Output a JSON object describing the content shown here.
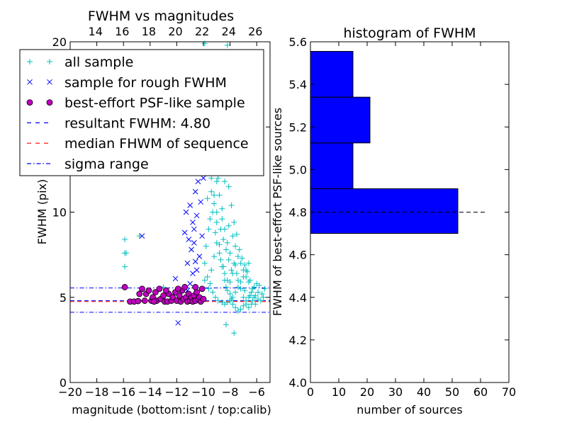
{
  "figure": {
    "left_title": "FWHM vs magnitudes",
    "left_xlabel": "magnitude (bottom:isnt / top:calib)",
    "left_ylabel": "FWHM (pix)",
    "right_title": "histogram of FWHM",
    "right_xlabel": "number of sources",
    "right_ylabel": "FWHM of best-effort PSF-like sources"
  },
  "legend": [
    {
      "label": "all sample",
      "marker": "plus",
      "color": "#00bfbf"
    },
    {
      "label": "sample for rough FWHM",
      "marker": "x",
      "color": "#0000ff"
    },
    {
      "label": "best-effort PSF-like sample",
      "marker": "circle",
      "color": "#bf00bf"
    },
    {
      "label": "resultant FWHM: 4.80",
      "marker": "dash",
      "color": "#0000ff"
    },
    {
      "label": "median FHWM of sequence",
      "marker": "dash",
      "color": "#ff0000"
    },
    {
      "label": "sigma range",
      "marker": "dashdot",
      "color": "#0000ff"
    }
  ],
  "chart_data": [
    {
      "type": "scatter",
      "title": "FWHM vs magnitudes",
      "xlabel": "magnitude (bottom:isnt / top:calib)",
      "ylabel": "FWHM (pix)",
      "xlim": [
        -20,
        -5
      ],
      "ylim": [
        0,
        20
      ],
      "xticks": [
        "−20",
        "−18",
        "−16",
        "−14",
        "−12",
        "−10",
        "−8",
        "−6"
      ],
      "xtick_values": [
        -20,
        -18,
        -16,
        -14,
        -12,
        -10,
        -8,
        -6
      ],
      "yticks": [
        "0",
        "5",
        "10",
        "15",
        "20"
      ],
      "ytick_values": [
        0,
        5,
        10,
        15,
        20
      ],
      "top_xticks": [
        "14",
        "16",
        "18",
        "20",
        "22",
        "24",
        "26"
      ],
      "top_xtick_values": [
        14,
        16,
        18,
        20,
        22,
        24,
        26
      ],
      "top_xlim": [
        12.1,
        27.1
      ],
      "lines": [
        {
          "name": "resultant FWHM: 4.80",
          "y": 4.8,
          "color": "#0000ff",
          "style": "dashed"
        },
        {
          "name": "median FHWM of sequence",
          "y": 4.75,
          "color": "#ff0000",
          "style": "dashed"
        },
        {
          "name": "sigma range",
          "y": 5.55,
          "color": "#0000ff",
          "style": "dashdot"
        },
        {
          "name": "sigma range",
          "y": 4.12,
          "color": "#0000ff",
          "style": "dashdot"
        }
      ],
      "series": [
        {
          "name": "all sample",
          "marker": "plus",
          "color": "#00bfbf",
          "points": [
            [
              -15.9,
              8.4
            ],
            [
              -15.9,
              7.6
            ],
            [
              -15.8,
              7.6
            ],
            [
              -15.9,
              6.8
            ],
            [
              -14.8,
              8.6
            ],
            [
              -13.0,
              5.6
            ],
            [
              -12.5,
              5.2
            ],
            [
              -9.6,
              12.5
            ],
            [
              -9.4,
              11.2
            ],
            [
              -9.2,
              10.5
            ],
            [
              -9.0,
              9.4
            ],
            [
              -9.1,
              8.8
            ],
            [
              -8.8,
              8.1
            ],
            [
              -8.7,
              7.2
            ],
            [
              -8.5,
              6.8
            ],
            [
              -8.4,
              6.4
            ],
            [
              -8.2,
              6.0
            ],
            [
              -8.3,
              5.6
            ],
            [
              -8.0,
              5.2
            ],
            [
              -7.9,
              4.9
            ],
            [
              -7.8,
              4.6
            ],
            [
              -7.6,
              4.4
            ],
            [
              -7.4,
              4.2
            ],
            [
              -7.2,
              4.3
            ],
            [
              -7.0,
              4.5
            ],
            [
              -6.8,
              4.8
            ],
            [
              -6.6,
              5.0
            ],
            [
              -6.4,
              5.3
            ],
            [
              -6.2,
              5.6
            ],
            [
              -6.0,
              5.8
            ],
            [
              -5.8,
              5.7
            ],
            [
              -5.6,
              5.2
            ],
            [
              -5.4,
              5.5
            ],
            [
              -7.7,
              2.9
            ],
            [
              -8.3,
              3.4
            ],
            [
              -8.9,
              13.2
            ],
            [
              -8.6,
              12.4
            ],
            [
              -8.4,
              11.8
            ],
            [
              -8.8,
              14.6
            ],
            [
              -9.3,
              15.2
            ],
            [
              -9.5,
              16.4
            ],
            [
              -9.1,
              17.3
            ],
            [
              -8.7,
              18.6
            ],
            [
              -9.9,
              19.9
            ],
            [
              -8.2,
              19.8
            ],
            [
              -9.0,
              10.0
            ],
            [
              -8.6,
              9.6
            ],
            [
              -8.1,
              9.2
            ],
            [
              -7.8,
              8.6
            ],
            [
              -7.6,
              8.0
            ],
            [
              -7.4,
              7.4
            ],
            [
              -7.2,
              7.0
            ],
            [
              -7.0,
              6.6
            ],
            [
              -6.8,
              6.2
            ],
            [
              -6.6,
              5.9
            ],
            [
              -7.9,
              6.6
            ],
            [
              -8.1,
              7.2
            ],
            [
              -8.3,
              7.8
            ],
            [
              -8.5,
              8.4
            ],
            [
              -8.7,
              9.0
            ],
            [
              -9.2,
              11.0
            ],
            [
              -9.4,
              12.0
            ],
            [
              -9.7,
              13.6
            ],
            [
              -9.8,
              14.4
            ],
            [
              -8.9,
              15.8
            ],
            [
              -9.6,
              9.0
            ],
            [
              -9.8,
              8.0
            ],
            [
              -9.9,
              7.0
            ],
            [
              -9.7,
              6.2
            ],
            [
              -9.5,
              5.8
            ],
            [
              -9.3,
              5.3
            ],
            [
              -9.1,
              5.0
            ],
            [
              -8.9,
              4.8
            ],
            [
              -8.6,
              4.7
            ],
            [
              -8.4,
              4.6
            ],
            [
              -8.2,
              4.7
            ],
            [
              -8.0,
              4.8
            ],
            [
              -7.8,
              5.0
            ],
            [
              -7.6,
              5.3
            ],
            [
              -7.4,
              5.6
            ],
            [
              -7.2,
              5.9
            ],
            [
              -7.0,
              6.2
            ],
            [
              -6.8,
              6.6
            ],
            [
              -6.6,
              7.0
            ],
            [
              -6.9,
              5.4
            ],
            [
              -6.5,
              5.1
            ],
            [
              -6.3,
              4.8
            ],
            [
              -6.1,
              4.6
            ],
            [
              -5.9,
              4.9
            ],
            [
              -7.5,
              6.4
            ],
            [
              -7.7,
              7.0
            ],
            [
              -8.0,
              7.6
            ],
            [
              -8.2,
              8.2
            ],
            [
              -8.4,
              9.0
            ],
            [
              -8.6,
              10.2
            ],
            [
              -8.8,
              11.0
            ],
            [
              -9.0,
              11.8
            ],
            [
              -9.2,
              13.0
            ],
            [
              -8.5,
              13.8
            ],
            [
              -8.3,
              12.8
            ],
            [
              -8.1,
              11.5
            ],
            [
              -7.9,
              10.4
            ],
            [
              -7.7,
              9.4
            ],
            [
              -7.5,
              8.7
            ],
            [
              -7.3,
              7.8
            ],
            [
              -7.1,
              7.3
            ],
            [
              -6.9,
              6.9
            ],
            [
              -6.7,
              6.5
            ],
            [
              -6.5,
              6.0
            ],
            [
              -6.3,
              5.5
            ],
            [
              -6.1,
              5.1
            ],
            [
              -5.9,
              5.3
            ],
            [
              -9.9,
              6.0
            ],
            [
              -9.6,
              5.5
            ],
            [
              -9.4,
              6.6
            ],
            [
              -9.2,
              7.4
            ],
            [
              -9.0,
              8.2
            ],
            [
              -8.8,
              7.6
            ],
            [
              -8.6,
              6.8
            ],
            [
              -8.4,
              6.0
            ],
            [
              -8.2,
              5.4
            ],
            [
              -8.0,
              5.9
            ],
            [
              -7.8,
              6.4
            ],
            [
              -7.6,
              6.9
            ],
            [
              -7.4,
              6.0
            ],
            [
              -7.2,
              5.5
            ],
            [
              -7.0,
              5.0
            ],
            [
              -6.8,
              4.6
            ],
            [
              -6.6,
              4.4
            ],
            [
              -6.4,
              4.6
            ],
            [
              -6.2,
              5.0
            ],
            [
              -5.7,
              4.8
            ],
            [
              -5.5,
              5.0
            ],
            [
              -8.7,
              14.2
            ],
            [
              -9.1,
              14.0
            ],
            [
              -8.9,
              12.0
            ],
            [
              -9.3,
              10.0
            ],
            [
              -9.5,
              9.6
            ],
            [
              -9.7,
              10.8
            ]
          ]
        },
        {
          "name": "sample for rough FWHM",
          "marker": "x",
          "color": "#0000ff",
          "points": [
            [
              -14.6,
              8.6
            ],
            [
              -12.1,
              6.1
            ],
            [
              -11.9,
              3.5
            ],
            [
              -11.2,
              5.4
            ],
            [
              -11.0,
              5.8
            ],
            [
              -10.8,
              6.4
            ],
            [
              -10.6,
              7.1
            ],
            [
              -10.9,
              7.8
            ],
            [
              -11.1,
              8.4
            ],
            [
              -10.7,
              9.0
            ],
            [
              -10.5,
              9.8
            ],
            [
              -11.0,
              10.4
            ],
            [
              -10.6,
              11.2
            ],
            [
              -10.4,
              11.8
            ],
            [
              -10.8,
              12.4
            ],
            [
              -10.2,
              13.2
            ],
            [
              -10.9,
              13.8
            ],
            [
              -10.6,
              14.6
            ],
            [
              -10.4,
              15.4
            ],
            [
              -10.1,
              16.2
            ],
            [
              -11.3,
              10.0
            ],
            [
              -10.7,
              8.2
            ],
            [
              -10.3,
              7.4
            ],
            [
              -10.5,
              6.6
            ],
            [
              -10.2,
              10.6
            ],
            [
              -10.0,
              12.0
            ],
            [
              -11.4,
              8.8
            ],
            [
              -10.8,
              9.4
            ],
            [
              -11.2,
              7.0
            ],
            [
              -10.1,
              8.6
            ]
          ]
        },
        {
          "name": "best-effort PSF-like sample",
          "marker": "circle",
          "color": "#bf00bf",
          "points": [
            [
              -15.9,
              5.6
            ],
            [
              -15.5,
              4.75
            ],
            [
              -15.2,
              4.75
            ],
            [
              -14.9,
              4.78
            ],
            [
              -14.6,
              5.5
            ],
            [
              -14.4,
              4.8
            ],
            [
              -14.3,
              5.2
            ],
            [
              -14.1,
              5.4
            ],
            [
              -13.9,
              4.8
            ],
            [
              -13.8,
              5.0
            ],
            [
              -13.6,
              5.3
            ],
            [
              -13.5,
              4.8
            ],
            [
              -13.3,
              5.5
            ],
            [
              -13.2,
              4.9
            ],
            [
              -13.0,
              5.1
            ],
            [
              -12.9,
              4.75
            ],
            [
              -12.7,
              4.75
            ],
            [
              -12.6,
              5.2
            ],
            [
              -12.4,
              4.8
            ],
            [
              -12.3,
              5.0
            ],
            [
              -12.1,
              5.3
            ],
            [
              -12.0,
              4.8
            ],
            [
              -11.8,
              5.1
            ],
            [
              -11.7,
              4.75
            ],
            [
              -11.6,
              5.4
            ],
            [
              -11.5,
              4.9
            ],
            [
              -11.3,
              5.0
            ],
            [
              -11.2,
              4.75
            ],
            [
              -11.1,
              5.2
            ],
            [
              -11.0,
              4.8
            ],
            [
              -10.9,
              5.0
            ],
            [
              -10.8,
              4.75
            ],
            [
              -10.7,
              5.1
            ],
            [
              -10.6,
              4.8
            ],
            [
              -10.5,
              5.3
            ],
            [
              -10.4,
              4.9
            ],
            [
              -10.3,
              5.0
            ],
            [
              -10.2,
              4.75
            ],
            [
              -10.1,
              5.5
            ],
            [
              -10.0,
              4.9
            ],
            [
              -11.9,
              5.5
            ],
            [
              -12.8,
              5.4
            ],
            [
              -13.7,
              4.75
            ],
            [
              -14.8,
              5.2
            ],
            [
              -11.4,
              5.6
            ],
            [
              -10.6,
              5.6
            ]
          ]
        }
      ]
    },
    {
      "type": "bar",
      "orientation": "horizontal",
      "title": "histogram of FWHM",
      "xlabel": "number of sources",
      "ylabel": "FWHM of best-effort PSF-like sources",
      "xlim": [
        0,
        70
      ],
      "ylim": [
        4.0,
        5.6
      ],
      "xticks": [
        "0",
        "10",
        "20",
        "30",
        "40",
        "50",
        "60",
        "70"
      ],
      "xtick_values": [
        0,
        10,
        20,
        30,
        40,
        50,
        60,
        70
      ],
      "yticks": [
        "4.0",
        "4.2",
        "4.4",
        "4.6",
        "4.8",
        "5.0",
        "5.2",
        "5.4",
        "5.6"
      ],
      "ytick_values": [
        4.0,
        4.2,
        4.4,
        4.6,
        4.8,
        5.0,
        5.2,
        5.4,
        5.6
      ],
      "bins": [
        {
          "from": 4.7,
          "to": 4.91,
          "count": 52
        },
        {
          "from": 4.91,
          "to": 5.125,
          "count": 15
        },
        {
          "from": 5.125,
          "to": 5.34,
          "count": 21
        },
        {
          "from": 5.34,
          "to": 5.555,
          "count": 15
        }
      ],
      "bar_color": "#0000ff",
      "reference_line": {
        "y": 4.8,
        "from": 0,
        "to": 62,
        "style": "dashed",
        "color": "#000000"
      }
    }
  ]
}
